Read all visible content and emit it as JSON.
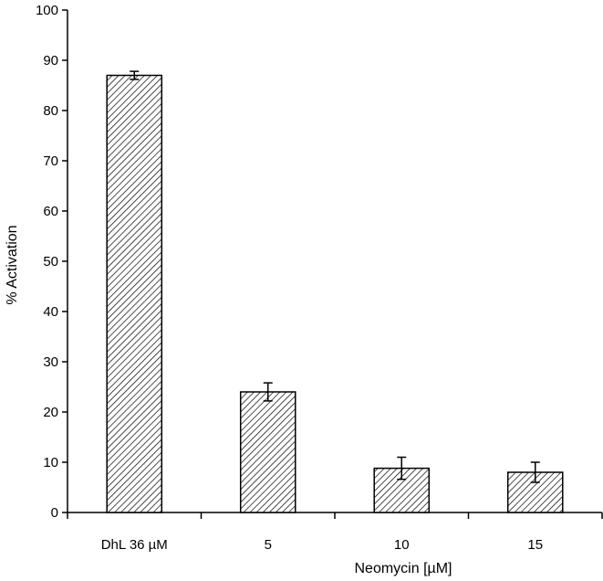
{
  "chart_data": {
    "type": "bar",
    "categories": [
      "DhL 36 µM",
      "5",
      "10",
      "15"
    ],
    "values": [
      87,
      24,
      8.8,
      8
    ],
    "error": [
      0.8,
      1.8,
      2.2,
      2.0
    ],
    "xlabel": "Neomycin [µM]",
    "ylabel": "% Activation",
    "ylim": [
      0,
      100
    ],
    "yticks": [
      "0",
      "10",
      "20",
      "30",
      "40",
      "50",
      "60",
      "70",
      "80",
      "90",
      "100"
    ],
    "grid": false,
    "bar_fill": "hatched-diagonal",
    "colors": {
      "bar_stroke": "#000000",
      "hatch": "#000000",
      "background": "#ffffff"
    }
  }
}
